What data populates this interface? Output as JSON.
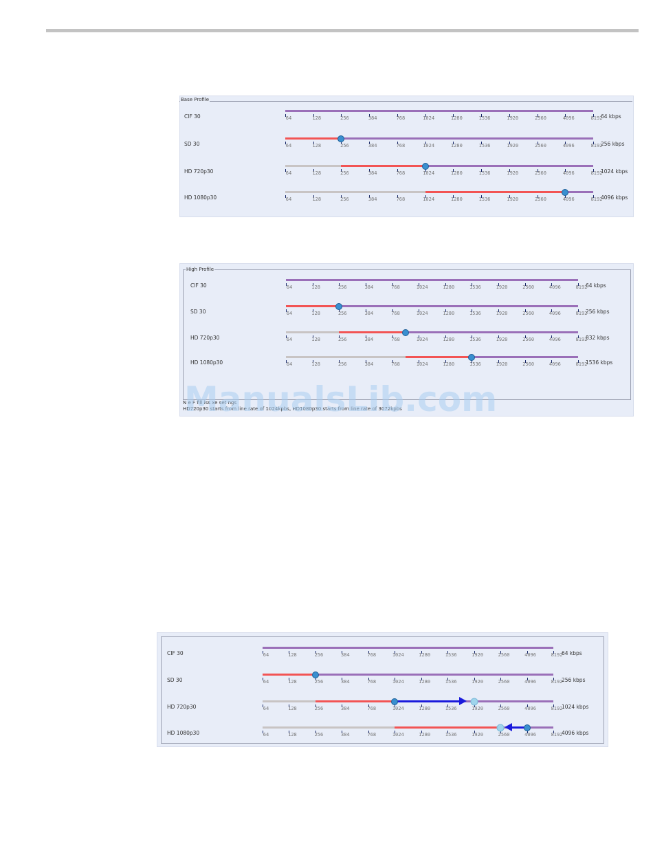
{
  "colors": {
    "purple": "#9a6fb8",
    "red": "#f25454",
    "grey": "#c8c4c4",
    "knob": "#3a8fd0",
    "ghost": "#9fd4ec",
    "arrow": "#1a1adc"
  },
  "ticks": [
    "64",
    "128",
    "256",
    "384",
    "768",
    "1024",
    "1280",
    "1536",
    "1920",
    "2560",
    "4096",
    "8192"
  ],
  "panels": [
    {
      "title": "Base Profile",
      "rows": [
        {
          "label": "CIF 30",
          "kbps": "64 kbps",
          "knob_index": 0,
          "show_knob": false,
          "red_from": 0,
          "red_to": 0
        },
        {
          "label": "SD 30",
          "kbps": "256 kbps",
          "knob_index": 2,
          "show_knob": true,
          "red_from": 0,
          "red_to": 2
        },
        {
          "label": "HD 720p30",
          "kbps": "1024 kbps",
          "knob_index": 5,
          "show_knob": true,
          "red_from": 2,
          "red_to": 5
        },
        {
          "label": "HD 1080p30",
          "kbps": "4096 kbps",
          "knob_index": 10,
          "show_knob": true,
          "red_from": 5,
          "red_to": 10
        }
      ]
    },
    {
      "title": "High Profile",
      "rows": [
        {
          "label": "CIF 30",
          "kbps": "64 kbps",
          "knob_index": 0,
          "show_knob": false,
          "red_from": 0,
          "red_to": 0
        },
        {
          "label": "SD 30",
          "kbps": "256 kbps",
          "knob_index": 2,
          "show_knob": true,
          "red_from": 0,
          "red_to": 2
        },
        {
          "label": "HD 720p30",
          "kbps": "832 kbps",
          "knob_index": 4.5,
          "show_knob": true,
          "red_from": 2,
          "red_to": 4.5
        },
        {
          "label": "HD 1080p30",
          "kbps": "1536 kbps",
          "knob_index": 7,
          "show_knob": true,
          "red_from": 4.5,
          "red_to": 7
        }
      ],
      "note_line1": "N   e   F  fill  iss  xe  set  ngs",
      "note_line2": "HD720p30 starts from line rate of 1024kpbs, HD1080p30 starts from line rate of 3072kpbs"
    },
    {
      "title": "",
      "rows": [
        {
          "label": "CIF 30",
          "kbps": "64 kbps",
          "knob_index": 0,
          "show_knob": false,
          "red_from": 0,
          "red_to": 0
        },
        {
          "label": "SD 30",
          "kbps": "256 kbps",
          "knob_index": 2,
          "show_knob": true,
          "red_from": 0,
          "red_to": 2
        },
        {
          "label": "HD 720p30",
          "kbps": "1024 kbps",
          "knob_index": 5,
          "show_knob": true,
          "red_from": 2,
          "red_to": 5,
          "ghost_index": 8,
          "arrow": "right"
        },
        {
          "label": "HD 1080p30",
          "kbps": "4096 kbps",
          "knob_index": 10,
          "show_knob": true,
          "red_from": 5,
          "red_to": 9,
          "ghost_index": 9,
          "arrow": "left"
        }
      ]
    }
  ],
  "watermark": "ManualsLib.com"
}
